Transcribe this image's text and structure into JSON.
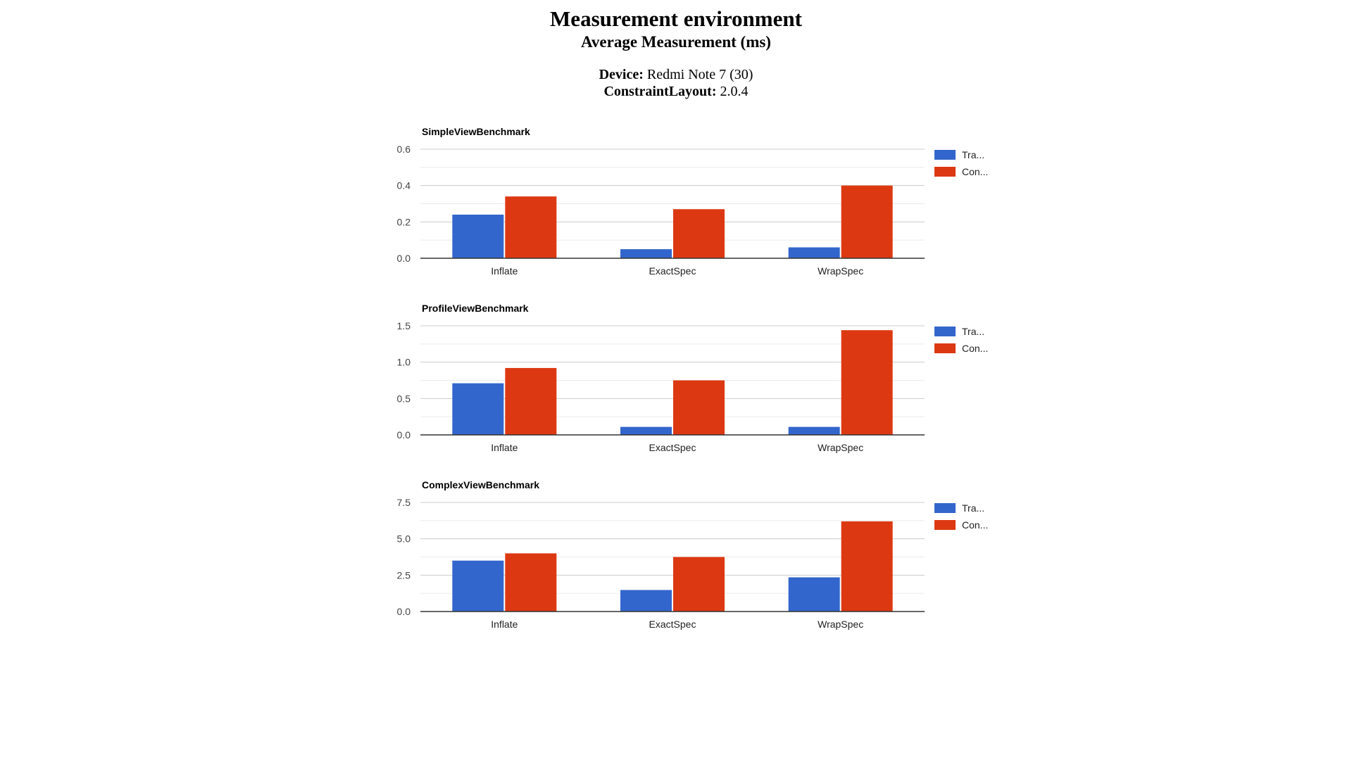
{
  "page": {
    "title": "Measurement environment",
    "subtitle": "Average Measurement (ms)",
    "device_label": "Device:",
    "device_value": "Redmi Note 7 (30)",
    "constraint_label": "ConstraintLayout:",
    "constraint_value": "2.0.4"
  },
  "colors": {
    "series1": "#3366cc",
    "series2": "#dc3912",
    "axis": "#333333",
    "grid": "#cccccc",
    "minor_grid": "#ebebeb"
  },
  "chart_data": [
    {
      "type": "bar",
      "title": "SimpleViewBenchmark",
      "categories": [
        "Inflate",
        "ExactSpec",
        "WrapSpec"
      ],
      "series": [
        {
          "name": "Tra...",
          "values": [
            0.24,
            0.05,
            0.06
          ]
        },
        {
          "name": "Con...",
          "values": [
            0.34,
            0.27,
            0.4
          ]
        }
      ],
      "yticks": [
        "0.0",
        "0.2",
        "0.4",
        "0.6"
      ],
      "ylim": [
        0,
        0.6
      ],
      "legend": "right",
      "grid": true
    },
    {
      "type": "bar",
      "title": "ProfileViewBenchmark",
      "categories": [
        "Inflate",
        "ExactSpec",
        "WrapSpec"
      ],
      "series": [
        {
          "name": "Tra...",
          "values": [
            0.71,
            0.11,
            0.11
          ]
        },
        {
          "name": "Con...",
          "values": [
            0.92,
            0.75,
            1.44
          ]
        }
      ],
      "yticks": [
        "0.0",
        "0.5",
        "1.0",
        "1.5"
      ],
      "ylim": [
        0,
        1.5
      ],
      "legend": "right",
      "grid": true
    },
    {
      "type": "bar",
      "title": "ComplexViewBenchmark",
      "categories": [
        "Inflate",
        "ExactSpec",
        "WrapSpec"
      ],
      "series": [
        {
          "name": "Tra...",
          "values": [
            3.5,
            1.48,
            2.35
          ]
        },
        {
          "name": "Con...",
          "values": [
            4.0,
            3.75,
            6.2
          ]
        }
      ],
      "yticks": [
        "0.0",
        "2.5",
        "5.0",
        "7.5"
      ],
      "ylim": [
        0,
        7.5
      ],
      "legend": "right",
      "grid": true
    }
  ]
}
